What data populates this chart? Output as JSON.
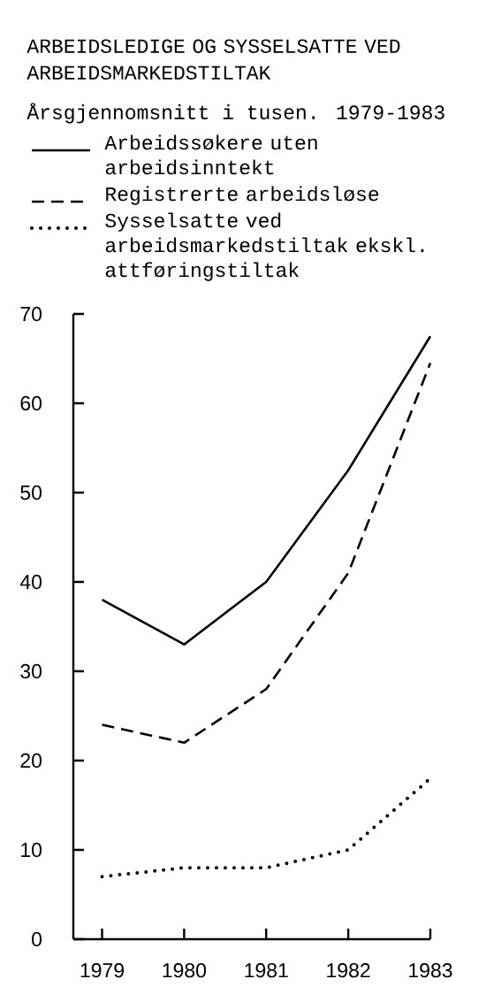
{
  "chart_data": {
    "type": "line",
    "title": "ARBEIDSLEDIGE OG SYSSELSATTE VED ARBEIDSMARKEDSTILTAK",
    "subtitle": "Årsgjennomsnitt i tusen.  1979-1983",
    "x": [
      1979,
      1980,
      1981,
      1982,
      1983
    ],
    "series": [
      {
        "name": "Arbeidssøkere uten arbeidsinntekt",
        "color": "#000000",
        "line_style": "solid",
        "values": [
          38,
          33,
          40,
          52.5,
          67.5
        ]
      },
      {
        "name": "Registrerte arbeidsløse",
        "color": "#000000",
        "line_style": "dashed",
        "values": [
          24,
          22,
          28,
          41,
          64.5
        ]
      },
      {
        "name": "Sysselsatte ved arbeidsmarkedstiltak ekskl. attføringstiltak",
        "color": "#000000",
        "line_style": "dotted",
        "values": [
          7,
          8,
          8,
          10,
          18
        ]
      }
    ],
    "xlim": [
      1978.65,
      1983
    ],
    "ylim": [
      0,
      70
    ],
    "xticks": [
      1979,
      1980,
      1981,
      1982,
      1983
    ],
    "yticks": [
      0,
      10,
      20,
      30,
      40,
      50,
      60,
      70
    ],
    "legend": "top"
  }
}
